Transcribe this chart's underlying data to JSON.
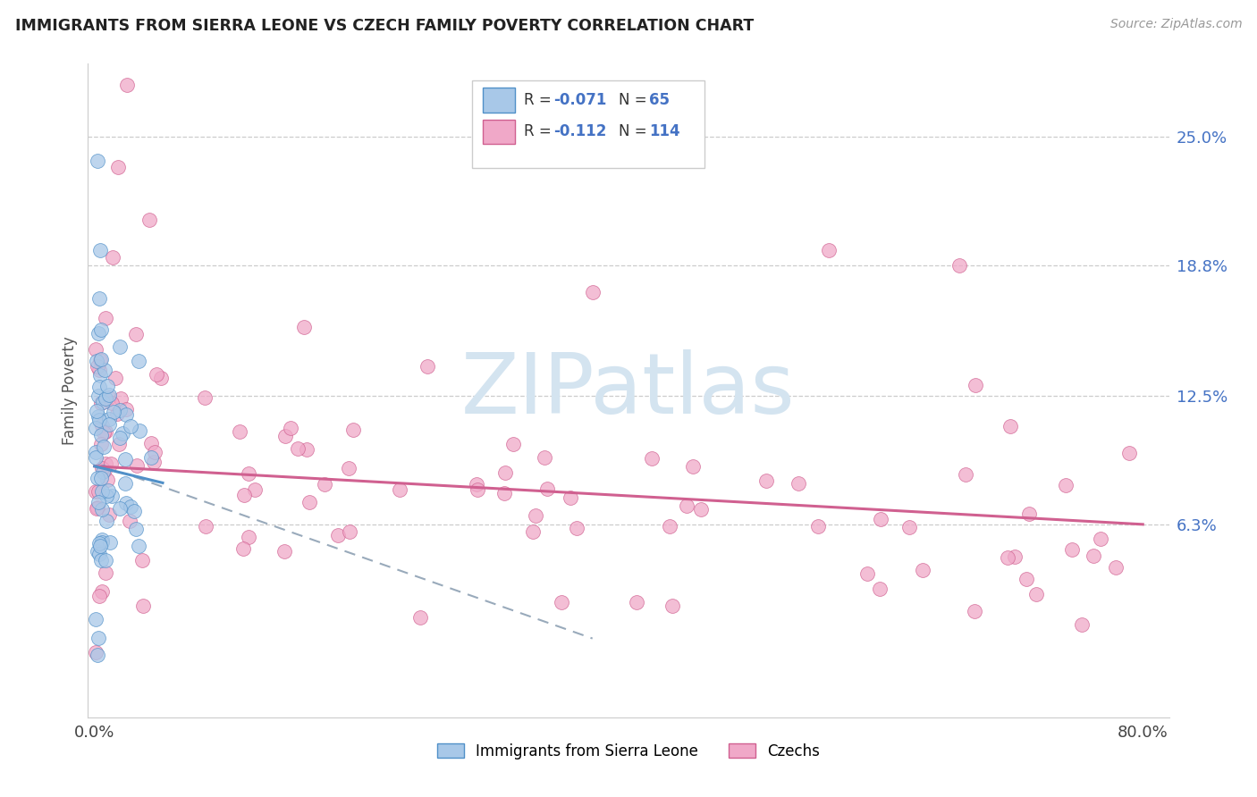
{
  "title": "IMMIGRANTS FROM SIERRA LEONE VS CZECH FAMILY POVERTY CORRELATION CHART",
  "source": "Source: ZipAtlas.com",
  "ylabel": "Family Poverty",
  "xlim": [
    -0.005,
    0.82
  ],
  "ylim": [
    -0.03,
    0.285
  ],
  "xtick_positions": [
    0.0,
    0.8
  ],
  "xticklabels": [
    "0.0%",
    "80.0%"
  ],
  "ytick_positions": [
    0.063,
    0.125,
    0.188,
    0.25
  ],
  "ytick_labels": [
    "6.3%",
    "12.5%",
    "18.8%",
    "25.0%"
  ],
  "grid_color": "#cccccc",
  "background_color": "#ffffff",
  "color_blue": "#a8c8e8",
  "color_pink": "#f0a8c8",
  "line_blue": "#5090c8",
  "line_pink": "#d06090",
  "line_dash": "#99aabb",
  "watermark_color": "#d4e4f0",
  "watermark_text": "ZIPatlas"
}
